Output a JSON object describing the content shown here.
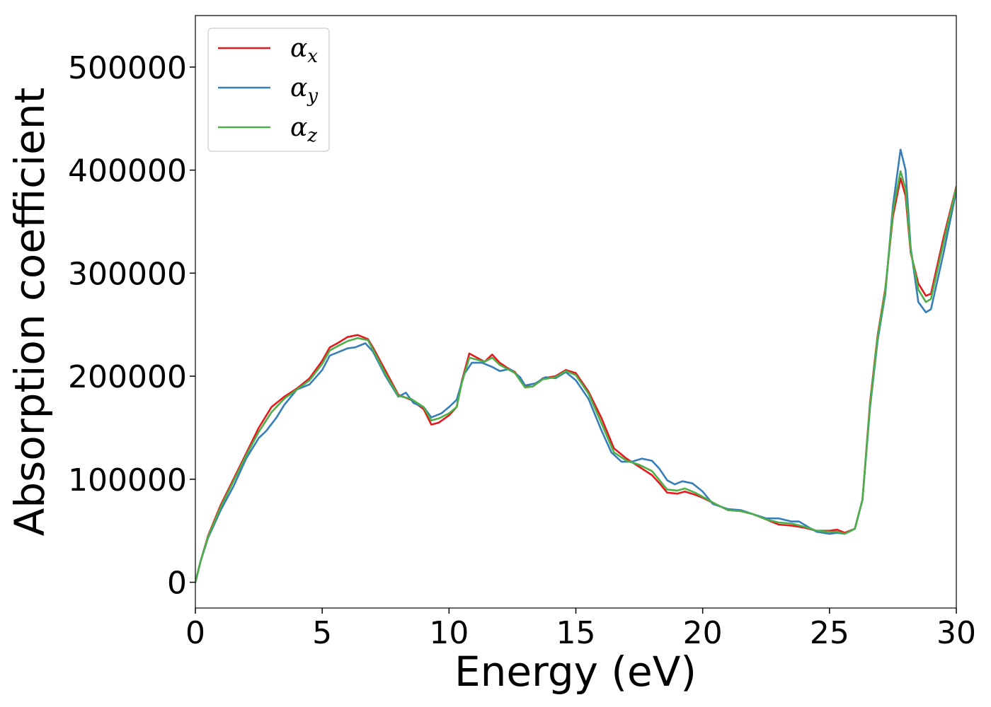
{
  "chart_data": {
    "type": "line",
    "title": "",
    "xlabel": "Energy (eV)",
    "ylabel": "Absorption coefficient",
    "xlim": [
      0,
      30
    ],
    "ylim": [
      -25000,
      550000
    ],
    "xticks": [
      0,
      5,
      10,
      15,
      20,
      25,
      30
    ],
    "yticks": [
      0,
      100000,
      200000,
      300000,
      400000,
      500000
    ],
    "grid": false,
    "legend_placement": "top-left",
    "series": [
      {
        "name": "αx",
        "symbol": "α",
        "subscript": "x",
        "color": "#e41a1c",
        "points": [
          [
            0,
            0
          ],
          [
            0.2,
            20000
          ],
          [
            0.5,
            45000
          ],
          [
            1,
            75000
          ],
          [
            1.5,
            100000
          ],
          [
            2,
            125000
          ],
          [
            2.5,
            150000
          ],
          [
            3,
            170000
          ],
          [
            3.5,
            180000
          ],
          [
            4,
            188000
          ],
          [
            4.5,
            198000
          ],
          [
            5,
            215000
          ],
          [
            5.3,
            228000
          ],
          [
            5.6,
            232000
          ],
          [
            6,
            238000
          ],
          [
            6.4,
            240000
          ],
          [
            6.8,
            236000
          ],
          [
            7,
            228000
          ],
          [
            7.5,
            205000
          ],
          [
            8,
            182000
          ],
          [
            8.5,
            177000
          ],
          [
            9,
            168000
          ],
          [
            9.3,
            153000
          ],
          [
            9.6,
            155000
          ],
          [
            10,
            162000
          ],
          [
            10.3,
            170000
          ],
          [
            10.5,
            195000
          ],
          [
            10.8,
            222000
          ],
          [
            11.1,
            218000
          ],
          [
            11.4,
            214000
          ],
          [
            11.7,
            221000
          ],
          [
            12,
            213000
          ],
          [
            12.3,
            208000
          ],
          [
            12.6,
            204000
          ],
          [
            13,
            190000
          ],
          [
            13.3,
            190000
          ],
          [
            13.7,
            198000
          ],
          [
            14.2,
            200000
          ],
          [
            14.6,
            206000
          ],
          [
            15,
            203000
          ],
          [
            15.5,
            185000
          ],
          [
            16,
            160000
          ],
          [
            16.5,
            130000
          ],
          [
            17,
            120000
          ],
          [
            17.5,
            112000
          ],
          [
            18,
            104000
          ],
          [
            18.3,
            96000
          ],
          [
            18.6,
            87000
          ],
          [
            19,
            86000
          ],
          [
            19.3,
            88000
          ],
          [
            19.7,
            85000
          ],
          [
            20,
            82000
          ],
          [
            20.5,
            76000
          ],
          [
            21,
            70000
          ],
          [
            21.5,
            69000
          ],
          [
            22,
            66000
          ],
          [
            22.5,
            61000
          ],
          [
            23,
            56000
          ],
          [
            23.5,
            55000
          ],
          [
            24,
            53000
          ],
          [
            24.5,
            50000
          ],
          [
            25,
            50000
          ],
          [
            25.3,
            51000
          ],
          [
            25.6,
            48000
          ],
          [
            26,
            52000
          ],
          [
            26.3,
            80000
          ],
          [
            26.6,
            175000
          ],
          [
            26.9,
            240000
          ],
          [
            27.2,
            285000
          ],
          [
            27.5,
            355000
          ],
          [
            27.8,
            392000
          ],
          [
            28,
            375000
          ],
          [
            28.2,
            320000
          ],
          [
            28.5,
            290000
          ],
          [
            28.8,
            278000
          ],
          [
            29,
            280000
          ],
          [
            29.5,
            335000
          ],
          [
            30,
            384000
          ]
        ]
      },
      {
        "name": "αy",
        "symbol": "α",
        "subscript": "y",
        "color": "#377eb8",
        "points": [
          [
            0,
            0
          ],
          [
            0.2,
            20000
          ],
          [
            0.5,
            43000
          ],
          [
            1,
            70000
          ],
          [
            1.5,
            93000
          ],
          [
            2,
            120000
          ],
          [
            2.5,
            140000
          ],
          [
            2.8,
            147000
          ],
          [
            3.2,
            160000
          ],
          [
            3.5,
            172000
          ],
          [
            4,
            187000
          ],
          [
            4.5,
            192000
          ],
          [
            5,
            206000
          ],
          [
            5.3,
            220000
          ],
          [
            5.6,
            223000
          ],
          [
            6,
            227000
          ],
          [
            6.3,
            228000
          ],
          [
            6.7,
            232000
          ],
          [
            7,
            224000
          ],
          [
            7.5,
            200000
          ],
          [
            8,
            180000
          ],
          [
            8.3,
            184000
          ],
          [
            8.6,
            174000
          ],
          [
            9,
            170000
          ],
          [
            9.3,
            160000
          ],
          [
            9.7,
            164000
          ],
          [
            10,
            170000
          ],
          [
            10.3,
            177000
          ],
          [
            10.6,
            202000
          ],
          [
            10.9,
            213000
          ],
          [
            11.3,
            213000
          ],
          [
            11.7,
            209000
          ],
          [
            12,
            205000
          ],
          [
            12.4,
            207000
          ],
          [
            12.8,
            199000
          ],
          [
            13,
            191000
          ],
          [
            13.4,
            193000
          ],
          [
            13.8,
            199000
          ],
          [
            14.2,
            198000
          ],
          [
            14.6,
            204000
          ],
          [
            15,
            196000
          ],
          [
            15.5,
            178000
          ],
          [
            16,
            148000
          ],
          [
            16.4,
            126000
          ],
          [
            16.8,
            117000
          ],
          [
            17.2,
            117000
          ],
          [
            17.6,
            120000
          ],
          [
            18,
            118000
          ],
          [
            18.3,
            110000
          ],
          [
            18.6,
            99000
          ],
          [
            18.9,
            95000
          ],
          [
            19.2,
            98000
          ],
          [
            19.6,
            96000
          ],
          [
            20,
            88000
          ],
          [
            20.4,
            76000
          ],
          [
            21,
            71000
          ],
          [
            21.5,
            70000
          ],
          [
            22,
            66000
          ],
          [
            22.5,
            62000
          ],
          [
            23,
            62000
          ],
          [
            23.5,
            59000
          ],
          [
            23.8,
            59000
          ],
          [
            24.2,
            53000
          ],
          [
            24.5,
            49000
          ],
          [
            25,
            47000
          ],
          [
            25.3,
            48000
          ],
          [
            25.6,
            47000
          ],
          [
            26,
            52000
          ],
          [
            26.3,
            80000
          ],
          [
            26.6,
            170000
          ],
          [
            26.9,
            235000
          ],
          [
            27.2,
            280000
          ],
          [
            27.5,
            365000
          ],
          [
            27.8,
            420000
          ],
          [
            28,
            400000
          ],
          [
            28.2,
            325000
          ],
          [
            28.5,
            272000
          ],
          [
            28.8,
            262000
          ],
          [
            29,
            265000
          ],
          [
            29.5,
            320000
          ],
          [
            30,
            380000
          ]
        ]
      },
      {
        "name": "αz",
        "symbol": "α",
        "subscript": "z",
        "color": "#4daf4a",
        "points": [
          [
            0,
            0
          ],
          [
            0.2,
            20000
          ],
          [
            0.5,
            44000
          ],
          [
            1,
            73000
          ],
          [
            1.5,
            98000
          ],
          [
            2,
            123000
          ],
          [
            2.5,
            146000
          ],
          [
            3,
            165000
          ],
          [
            3.5,
            178000
          ],
          [
            4,
            187000
          ],
          [
            4.5,
            196000
          ],
          [
            5,
            212000
          ],
          [
            5.3,
            225000
          ],
          [
            5.6,
            229000
          ],
          [
            6,
            234000
          ],
          [
            6.4,
            237000
          ],
          [
            6.8,
            235000
          ],
          [
            7,
            226000
          ],
          [
            7.5,
            202000
          ],
          [
            8,
            181000
          ],
          [
            8.5,
            178000
          ],
          [
            9,
            170000
          ],
          [
            9.3,
            157000
          ],
          [
            9.6,
            159000
          ],
          [
            10,
            164000
          ],
          [
            10.3,
            170000
          ],
          [
            10.5,
            193000
          ],
          [
            10.8,
            218000
          ],
          [
            11.1,
            216000
          ],
          [
            11.4,
            214000
          ],
          [
            11.7,
            218000
          ],
          [
            12,
            211000
          ],
          [
            12.3,
            207000
          ],
          [
            12.6,
            203000
          ],
          [
            13,
            189000
          ],
          [
            13.3,
            190000
          ],
          [
            13.7,
            197000
          ],
          [
            14.2,
            199000
          ],
          [
            14.6,
            205000
          ],
          [
            15,
            201000
          ],
          [
            15.5,
            183000
          ],
          [
            16,
            155000
          ],
          [
            16.5,
            126000
          ],
          [
            17,
            118000
          ],
          [
            17.5,
            114000
          ],
          [
            18,
            108000
          ],
          [
            18.3,
            99000
          ],
          [
            18.6,
            90000
          ],
          [
            19,
            89000
          ],
          [
            19.3,
            91000
          ],
          [
            19.7,
            87000
          ],
          [
            20,
            83000
          ],
          [
            20.5,
            76000
          ],
          [
            21,
            70000
          ],
          [
            21.5,
            69000
          ],
          [
            22,
            66000
          ],
          [
            22.5,
            61000
          ],
          [
            23,
            58000
          ],
          [
            23.5,
            57000
          ],
          [
            24,
            54000
          ],
          [
            24.5,
            50000
          ],
          [
            25,
            49000
          ],
          [
            25.3,
            49000
          ],
          [
            25.6,
            47000
          ],
          [
            26,
            52000
          ],
          [
            26.3,
            80000
          ],
          [
            26.6,
            172000
          ],
          [
            26.9,
            238000
          ],
          [
            27.2,
            283000
          ],
          [
            27.5,
            360000
          ],
          [
            27.8,
            399000
          ],
          [
            28,
            382000
          ],
          [
            28.2,
            322000
          ],
          [
            28.5,
            284000
          ],
          [
            28.8,
            272000
          ],
          [
            29,
            275000
          ],
          [
            29.5,
            330000
          ],
          [
            30,
            383000
          ]
        ]
      }
    ]
  }
}
